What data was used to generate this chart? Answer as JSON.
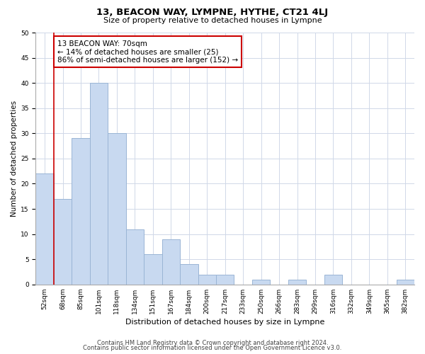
{
  "title": "13, BEACON WAY, LYMPNE, HYTHE, CT21 4LJ",
  "subtitle": "Size of property relative to detached houses in Lympne",
  "xlabel": "Distribution of detached houses by size in Lympne",
  "ylabel": "Number of detached properties",
  "bin_labels": [
    "52sqm",
    "68sqm",
    "85sqm",
    "101sqm",
    "118sqm",
    "134sqm",
    "151sqm",
    "167sqm",
    "184sqm",
    "200sqm",
    "217sqm",
    "233sqm",
    "250sqm",
    "266sqm",
    "283sqm",
    "299sqm",
    "316sqm",
    "332sqm",
    "349sqm",
    "365sqm",
    "382sqm"
  ],
  "bar_values": [
    22,
    17,
    29,
    40,
    30,
    11,
    6,
    9,
    4,
    2,
    2,
    0,
    1,
    0,
    1,
    0,
    2,
    0,
    0,
    0,
    1
  ],
  "bar_color": "#c8d9f0",
  "bar_edge_color": "#9ab5d5",
  "vline_x": 1.5,
  "vline_color": "#cc0000",
  "annotation_text": "13 BEACON WAY: 70sqm\n← 14% of detached houses are smaller (25)\n86% of semi-detached houses are larger (152) →",
  "annotation_box_color": "#ffffff",
  "annotation_box_edge_color": "#cc0000",
  "ylim": [
    0,
    50
  ],
  "yticks": [
    0,
    5,
    10,
    15,
    20,
    25,
    30,
    35,
    40,
    45,
    50
  ],
  "footer1": "Contains HM Land Registry data © Crown copyright and database right 2024.",
  "footer2": "Contains public sector information licensed under the Open Government Licence v3.0.",
  "background_color": "#ffffff",
  "grid_color": "#d0d8e8",
  "title_fontsize": 9.5,
  "subtitle_fontsize": 8,
  "ylabel_fontsize": 7.5,
  "xlabel_fontsize": 8,
  "tick_fontsize": 6.5,
  "annotation_fontsize": 7.5,
  "footer_fontsize": 6
}
